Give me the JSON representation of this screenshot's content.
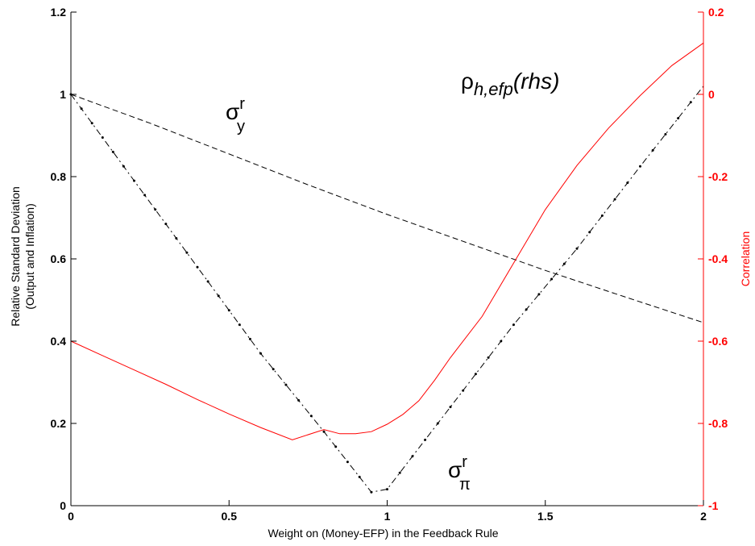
{
  "chart_data": {
    "type": "line",
    "xlabel": "Weight on (Money-EFP) in the Feedback Rule",
    "ylabel_lines": [
      "Relative Standard Deviation",
      "(Output and Inflation)"
    ],
    "y2label": "Correlation",
    "xlim": [
      0,
      2
    ],
    "ylim": [
      0,
      1.2
    ],
    "y2lim": [
      -1,
      0.2
    ],
    "xticks": [
      "0",
      "0.5",
      "1",
      "1.5",
      "2"
    ],
    "yticks": [
      "0",
      "0.2",
      "0.4",
      "0.6",
      "0.8",
      "1",
      "1.2"
    ],
    "y2ticks": [
      "-1",
      "-0.8",
      "-0.6",
      "-0.4",
      "-0.2",
      "0",
      "0.2"
    ],
    "grid": false,
    "colors": {
      "axis": "#000000",
      "right_axis": "#ff0000",
      "correlation": "#ff0000",
      "sigma_lines": "#000000"
    },
    "series": [
      {
        "key": "sigma_y",
        "axis": "left",
        "style": "dashed",
        "x": [
          0,
          0.25,
          0.5,
          0.75,
          1.0,
          1.25,
          1.5,
          1.75,
          2.0
        ],
        "values": [
          1.0,
          0.93,
          0.855,
          0.78,
          0.708,
          0.64,
          0.572,
          0.508,
          0.445
        ]
      },
      {
        "key": "sigma_pi",
        "axis": "left",
        "style": "dash-dot",
        "x": [
          0,
          0.2,
          0.4,
          0.6,
          0.8,
          0.95,
          1.0,
          1.2,
          1.4,
          1.6,
          1.8,
          2.0
        ],
        "values": [
          1.0,
          0.79,
          0.58,
          0.37,
          0.18,
          0.033,
          0.04,
          0.24,
          0.44,
          0.625,
          0.825,
          1.02
        ]
      },
      {
        "key": "rho",
        "axis": "right",
        "style": "solid",
        "x": [
          0,
          0.1,
          0.2,
          0.3,
          0.4,
          0.5,
          0.6,
          0.7,
          0.8,
          0.85,
          0.9,
          0.95,
          1.0,
          1.05,
          1.1,
          1.15,
          1.2,
          1.3,
          1.4,
          1.5,
          1.6,
          1.7,
          1.8,
          1.9,
          2.0
        ],
        "values": [
          -0.6,
          -0.635,
          -0.67,
          -0.705,
          -0.742,
          -0.777,
          -0.81,
          -0.84,
          -0.815,
          -0.825,
          -0.825,
          -0.82,
          -0.802,
          -0.778,
          -0.745,
          -0.695,
          -0.64,
          -0.54,
          -0.41,
          -0.28,
          -0.173,
          -0.082,
          -0.003,
          0.07,
          0.125
        ]
      }
    ],
    "annotations": [
      {
        "base": "σ",
        "sup": "r",
        "sub": "y",
        "series": "sigma_y"
      },
      {
        "base": "ρ",
        "sub": "h,efp",
        "tail": "(rhs)",
        "series": "rho"
      },
      {
        "base": "σ",
        "sup": "r",
        "sub": "π",
        "series": "sigma_pi"
      }
    ]
  }
}
